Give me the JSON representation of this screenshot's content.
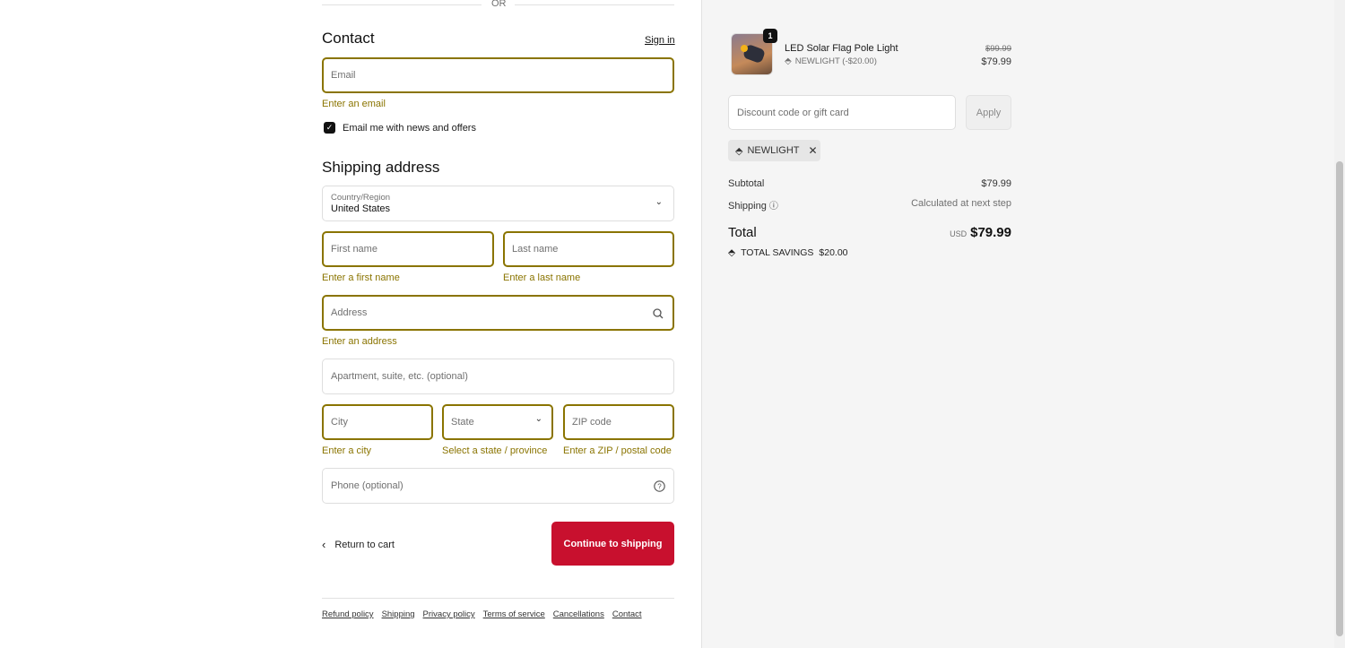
{
  "divider": "OR",
  "contact": {
    "title": "Contact",
    "sign_in": "Sign in",
    "email_placeholder": "Email",
    "email_error": "Enter an email",
    "newsletter_label": "Email me with news and offers",
    "newsletter_checked": true
  },
  "shipping": {
    "title": "Shipping address",
    "country_label": "Country/Region",
    "country_value": "United States",
    "first_name": "First name",
    "first_name_error": "Enter a first name",
    "last_name": "Last name",
    "last_name_error": "Enter a last name",
    "address": "Address",
    "address_error": "Enter an address",
    "apartment": "Apartment, suite, etc. (optional)",
    "city": "City",
    "city_error": "Enter a city",
    "state": "State",
    "state_error": "Select a state / province",
    "zip": "ZIP code",
    "zip_error": "Enter a ZIP / postal code",
    "phone": "Phone (optional)"
  },
  "actions": {
    "return": "Return to cart",
    "continue": "Continue to shipping"
  },
  "footer": [
    "Refund policy",
    "Shipping",
    "Privacy policy",
    "Terms of service",
    "Cancellations",
    "Contact"
  ],
  "summary": {
    "item": {
      "name": "LED Solar Flag Pole Light",
      "quantity": "1",
      "discount": "NEWLIGHT (-$20.00)",
      "original_price": "$99.99",
      "price": "$79.99"
    },
    "discount_placeholder": "Discount code or gift card",
    "apply": "Apply",
    "applied_code": "NEWLIGHT",
    "subtotal_label": "Subtotal",
    "subtotal": "$79.99",
    "shipping_label": "Shipping",
    "shipping_value": "Calculated at next step",
    "total_label": "Total",
    "currency": "USD",
    "total": "$79.99",
    "savings_label": "TOTAL SAVINGS",
    "savings": "$20.00"
  },
  "colors": {
    "error": "#8a7400",
    "primary_button": "#c8102e"
  }
}
